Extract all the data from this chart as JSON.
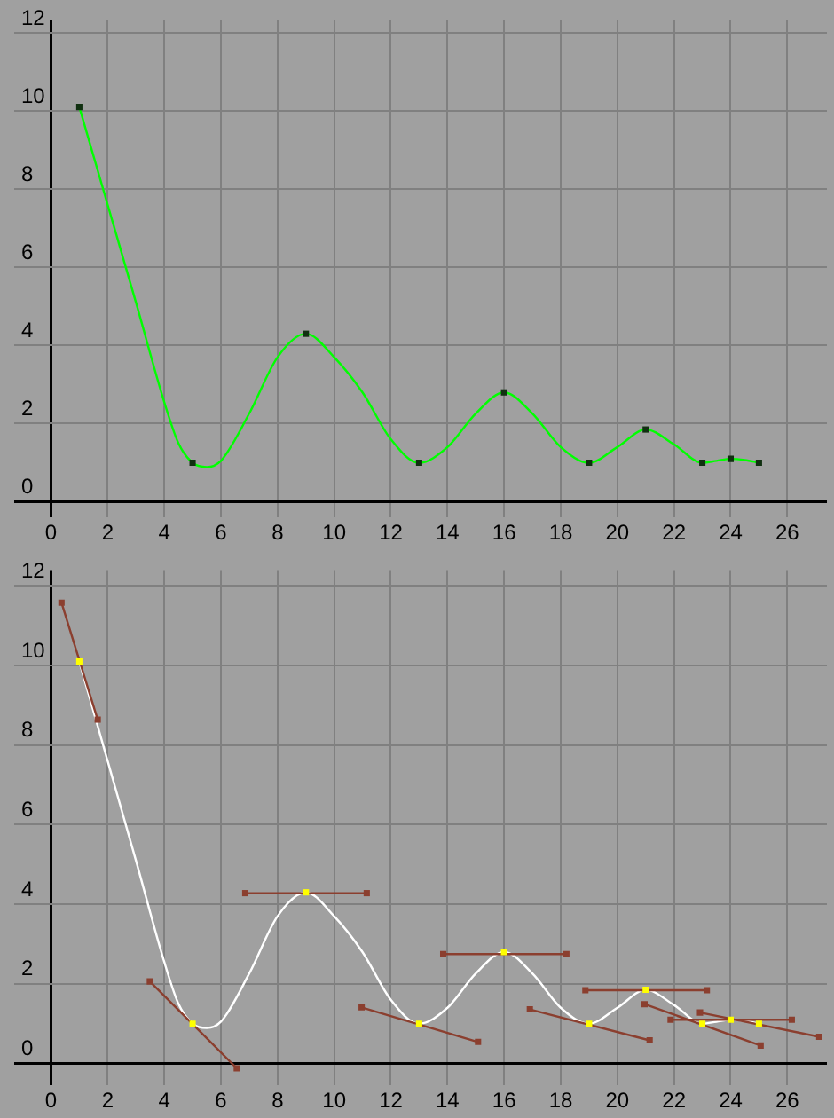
{
  "chart_data": [
    {
      "type": "line",
      "xlim": [
        -1.3,
        27.4
      ],
      "ylim": [
        -0.4,
        12.33
      ],
      "xticks": [
        0,
        2,
        4,
        6,
        8,
        10,
        12,
        14,
        16,
        18,
        20,
        22,
        24,
        26
      ],
      "yticks": [
        0,
        2,
        4,
        6,
        8,
        10,
        12
      ],
      "grid": true,
      "legend": false,
      "series": [
        {
          "marker": "none",
          "color": "#00ff00",
          "x": [
            1,
            2,
            3,
            4,
            4.5,
            5,
            5.5,
            6,
            7,
            8,
            9,
            10,
            11,
            12,
            13,
            14,
            15,
            16,
            17,
            18,
            19,
            20,
            21,
            22,
            23,
            23.5,
            24,
            24.5,
            25
          ],
          "values": [
            10.1,
            7.6,
            5.1,
            2.55,
            1.5,
            1,
            0.89,
            1.05,
            2.26,
            3.7,
            4.3,
            3.7,
            2.8,
            1.6,
            1,
            1.4,
            2.26,
            2.8,
            2.26,
            1.4,
            1,
            1.4,
            1.85,
            1.47,
            1,
            1.05,
            1.1,
            1.07,
            1
          ]
        },
        {
          "type": "scatter",
          "marker": "square",
          "color": "#103010",
          "x": [
            1,
            5,
            9,
            13,
            16,
            19,
            21,
            23,
            24,
            25
          ],
          "values": [
            10.1,
            1,
            4.3,
            1,
            2.8,
            1,
            1.85,
            1,
            1.1,
            1
          ]
        }
      ]
    },
    {
      "type": "line",
      "xlim": [
        -1.3,
        27.4
      ],
      "ylim": [
        -0.55,
        12.4
      ],
      "xticks": [
        0,
        2,
        4,
        6,
        8,
        10,
        12,
        14,
        16,
        18,
        20,
        22,
        24,
        26
      ],
      "yticks": [
        0,
        2,
        4,
        6,
        8,
        10,
        12
      ],
      "grid": true,
      "legend": false,
      "series": [
        {
          "marker": "none",
          "color": "#ffffff",
          "x": [
            1,
            2,
            3,
            4,
            4.5,
            5,
            5.5,
            6,
            7,
            8,
            9,
            10,
            11,
            12,
            13,
            14,
            15,
            16,
            17,
            18,
            19,
            20,
            21,
            22,
            23,
            23.5,
            24,
            24.5,
            25
          ],
          "values": [
            10.1,
            7.6,
            5.1,
            2.55,
            1.5,
            1,
            0.89,
            1.05,
            2.26,
            3.7,
            4.3,
            3.7,
            2.8,
            1.6,
            1,
            1.4,
            2.26,
            2.8,
            2.26,
            1.4,
            1,
            1.4,
            1.85,
            1.47,
            1,
            1.05,
            1.1,
            1.07,
            1
          ]
        },
        {
          "type": "line",
          "marker": "square",
          "color": "#8b3f2f",
          "x": [
            0.37,
            1.65
          ],
          "values": [
            11.58,
            8.64
          ]
        },
        {
          "type": "line",
          "marker": "square",
          "color": "#8b3f2f",
          "x": [
            3.49,
            6.56
          ],
          "values": [
            2.06,
            -0.12
          ]
        },
        {
          "type": "line",
          "marker": "square",
          "color": "#8b3f2f",
          "x": [
            6.86,
            11.15
          ],
          "values": [
            4.28,
            4.28
          ]
        },
        {
          "type": "line",
          "marker": "square",
          "color": "#8b3f2f",
          "x": [
            10.97,
            15.08
          ],
          "values": [
            1.41,
            0.54
          ]
        },
        {
          "type": "line",
          "marker": "square",
          "color": "#8b3f2f",
          "x": [
            13.85,
            18.2
          ],
          "values": [
            2.75,
            2.75
          ]
        },
        {
          "type": "line",
          "marker": "square",
          "color": "#8b3f2f",
          "x": [
            16.91,
            21.14
          ],
          "values": [
            1.36,
            0.58
          ]
        },
        {
          "type": "line",
          "marker": "square",
          "color": "#8b3f2f",
          "x": [
            18.87,
            23.16
          ],
          "values": [
            1.84,
            1.84
          ]
        },
        {
          "type": "line",
          "marker": "square",
          "color": "#8b3f2f",
          "x": [
            20.96,
            25.06
          ],
          "values": [
            1.49,
            0.45
          ]
        },
        {
          "type": "line",
          "marker": "square",
          "color": "#8b3f2f",
          "x": [
            21.88,
            26.16
          ],
          "values": [
            1.1,
            1.1
          ]
        },
        {
          "type": "line",
          "marker": "square",
          "color": "#8b3f2f",
          "x": [
            22.92,
            27.13
          ],
          "values": [
            1.28,
            0.67
          ]
        },
        {
          "type": "scatter",
          "marker": "square",
          "color": "#ffff00",
          "x": [
            1,
            5,
            9,
            13,
            16,
            19,
            21,
            23,
            24,
            25
          ],
          "values": [
            10.1,
            1,
            4.3,
            1,
            2.8,
            1,
            1.85,
            1,
            1.1,
            1
          ]
        }
      ]
    }
  ]
}
